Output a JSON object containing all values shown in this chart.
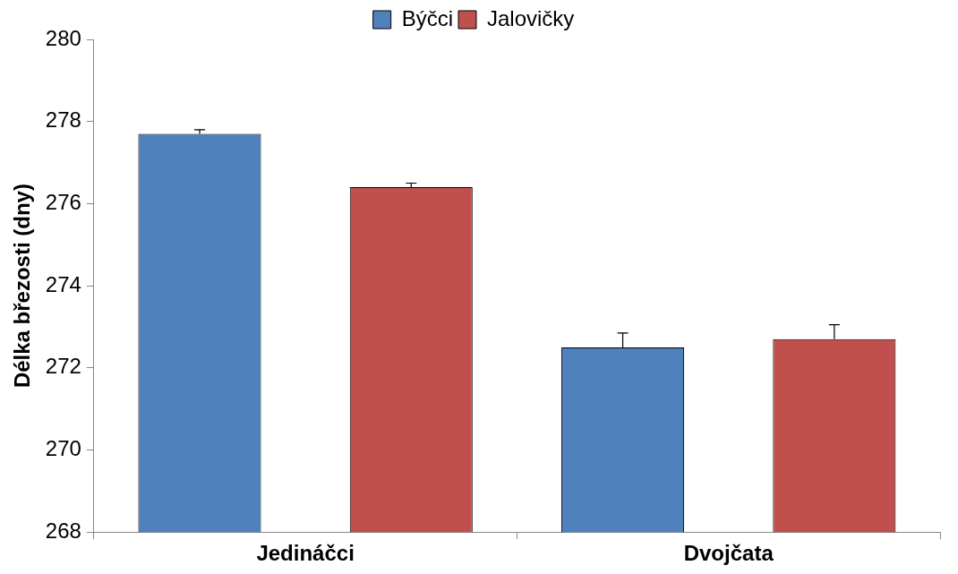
{
  "chart_data": {
    "type": "bar",
    "ylabel": "Délka březosti (dny)",
    "categories": [
      "Jedináčci",
      "Dvojčata"
    ],
    "series": [
      {
        "name": "Býčci",
        "color": "#4f81bd",
        "values": [
          277.7,
          272.5
        ],
        "errors": [
          [
            277.7,
            277.8
          ],
          [
            272.5,
            272.85
          ]
        ]
      },
      {
        "name": "Jalovičky",
        "color": "#c0504d",
        "values": [
          276.4,
          272.7
        ],
        "errors": [
          [
            276.4,
            276.5
          ],
          [
            272.7,
            273.05
          ]
        ]
      }
    ],
    "ylim": [
      268,
      280
    ],
    "yticks": [
      268,
      270,
      272,
      274,
      276,
      278,
      280
    ],
    "legend": "top"
  }
}
